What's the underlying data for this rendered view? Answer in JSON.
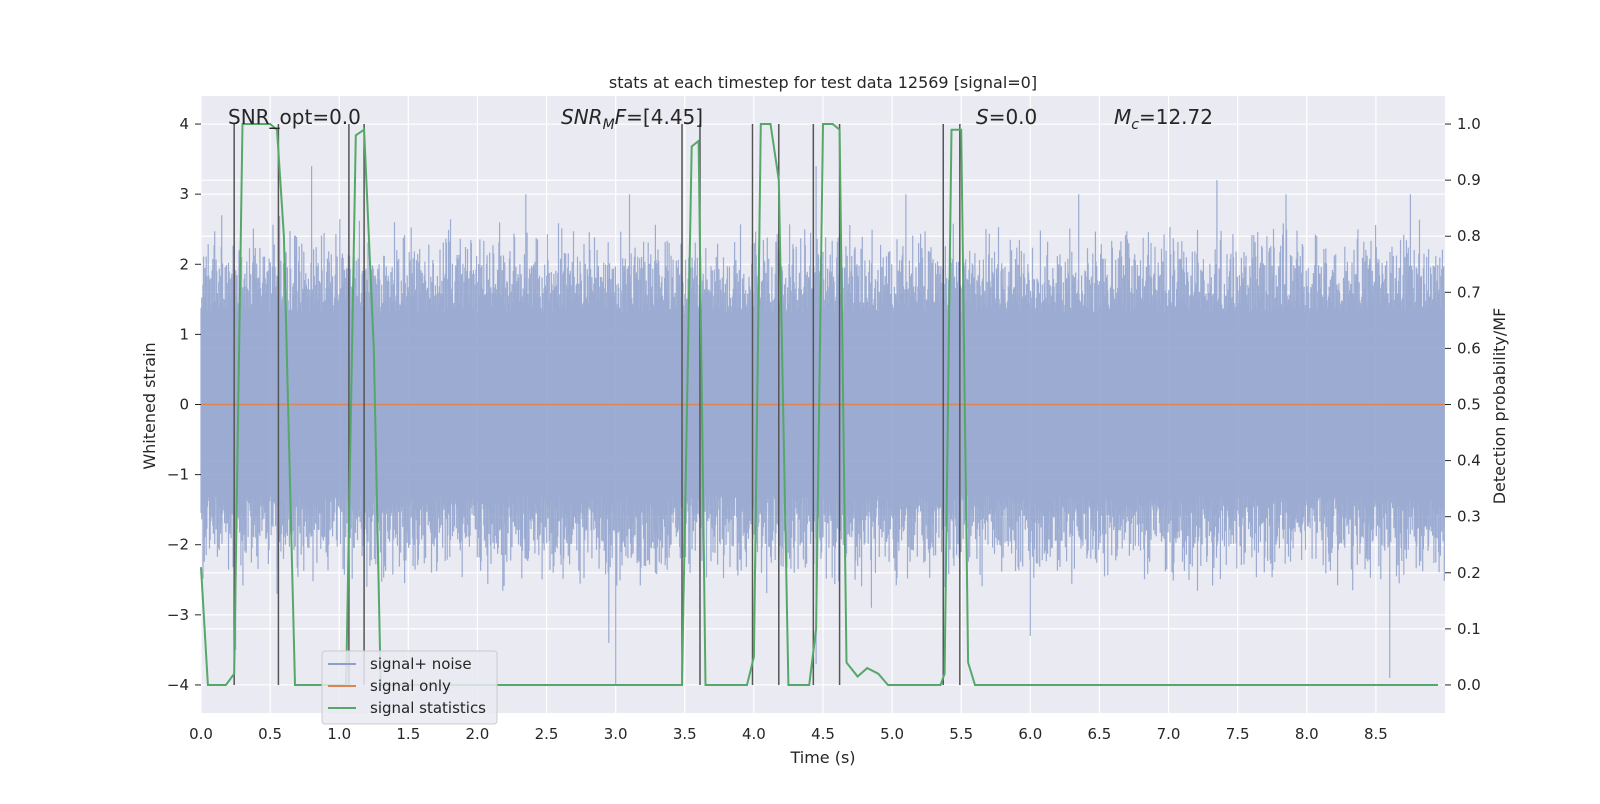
{
  "chart_data": {
    "type": "line",
    "title": "stats at each timestep for test data 12569 [signal=0]",
    "xlabel": "Time (s)",
    "ylabel": "Whitened strain",
    "y2label": "Detection probability/MF",
    "xlim": [
      0,
      9.0
    ],
    "ylim": [
      -4.4,
      4.4
    ],
    "y2lim": [
      -0.05,
      1.05
    ],
    "xticks": [
      0.0,
      0.5,
      1.0,
      1.5,
      2.0,
      2.5,
      3.0,
      3.5,
      4.0,
      4.5,
      5.0,
      5.5,
      6.0,
      6.5,
      7.0,
      7.5,
      8.0,
      8.5
    ],
    "xtick_labels": [
      "0.0",
      "0.5",
      "1.0",
      "1.5",
      "2.0",
      "2.5",
      "3.0",
      "3.5",
      "4.0",
      "4.5",
      "5.0",
      "5.5",
      "6.0",
      "6.5",
      "7.0",
      "7.5",
      "8.0",
      "8.5"
    ],
    "yticks": [
      -4,
      -3,
      -2,
      -1,
      0,
      1,
      2,
      3,
      4
    ],
    "ytick_labels": [
      "−4",
      "−3",
      "−2",
      "−1",
      "0",
      "1",
      "2",
      "3",
      "4"
    ],
    "y2ticks": [
      0.0,
      0.1,
      0.2,
      0.3,
      0.4,
      0.5,
      0.6,
      0.7,
      0.8,
      0.9,
      1.0
    ],
    "y2tick_labels": [
      "0.0",
      "0.1",
      "0.2",
      "0.3",
      "0.4",
      "0.5",
      "0.6",
      "0.7",
      "0.8",
      "0.9",
      "1.0"
    ],
    "grid": true,
    "legend_position": "lower-left",
    "annotations": {
      "snr_opt": "SNR_opt=0.0",
      "snr_mf_sym": "SNR",
      "snr_mf_sub": "M",
      "snr_mf_sym2": "F",
      "snr_mf_rest": "=[4.45]",
      "s_sym": "S",
      "s_rest": "=0.0",
      "mc_sym": "M",
      "mc_sub": "c",
      "mc_rest": "=12.72"
    },
    "series": [
      {
        "name": "signal+ noise",
        "color": "#8da0cb",
        "kind": "noise",
        "typical_abs_range": [
          1.3,
          2.7
        ],
        "peaks": [
          [
            0.15,
            2.7
          ],
          [
            0.25,
            -3.5
          ],
          [
            0.55,
            -2.7
          ],
          [
            0.8,
            3.4
          ],
          [
            1.07,
            3.0
          ],
          [
            1.2,
            -2.6
          ],
          [
            1.4,
            2.6
          ],
          [
            2.35,
            3.0
          ],
          [
            2.95,
            -3.4
          ],
          [
            3.0,
            -4.0
          ],
          [
            3.1,
            3.0
          ],
          [
            4.45,
            3.4
          ],
          [
            4.45,
            -3.7
          ],
          [
            4.85,
            -2.9
          ],
          [
            5.1,
            3.0
          ],
          [
            6.0,
            -3.3
          ],
          [
            6.35,
            3.0
          ],
          [
            7.35,
            3.2
          ],
          [
            7.85,
            3.0
          ],
          [
            8.6,
            -3.9
          ],
          [
            8.75,
            3.0
          ]
        ]
      },
      {
        "name": "signal only",
        "color": "#dd8452",
        "kind": "line",
        "value": 0
      },
      {
        "name": "signal statistics",
        "color": "#55a868",
        "axis": "right",
        "x": [
          0.0,
          0.05,
          0.18,
          0.24,
          0.3,
          0.5,
          0.55,
          0.6,
          0.68,
          1.05,
          1.12,
          1.18,
          1.25,
          1.3,
          3.48,
          3.55,
          3.6,
          3.65,
          3.7,
          3.95,
          4.0,
          4.05,
          4.12,
          4.18,
          4.25,
          4.4,
          4.45,
          4.5,
          4.57,
          4.62,
          4.67,
          4.75,
          4.82,
          4.9,
          4.97,
          5.35,
          5.38,
          5.43,
          5.5,
          5.55,
          5.6,
          8.95
        ],
        "values": [
          0.21,
          0.0,
          0.0,
          0.02,
          1.0,
          1.0,
          0.99,
          0.8,
          0.0,
          0.0,
          0.98,
          0.99,
          0.6,
          0.0,
          0.0,
          0.96,
          0.97,
          0.0,
          0.0,
          0.0,
          0.05,
          1.0,
          1.0,
          0.9,
          0.0,
          0.0,
          0.1,
          1.0,
          1.0,
          0.99,
          0.04,
          0.015,
          0.03,
          0.02,
          0.0,
          0.0,
          0.02,
          0.99,
          0.99,
          0.04,
          0.0,
          0.0
        ]
      }
    ],
    "vlines": [
      0.24,
      0.56,
      1.07,
      1.18,
      3.48,
      3.61,
      3.99,
      4.18,
      4.43,
      4.62,
      5.37,
      5.49
    ]
  }
}
